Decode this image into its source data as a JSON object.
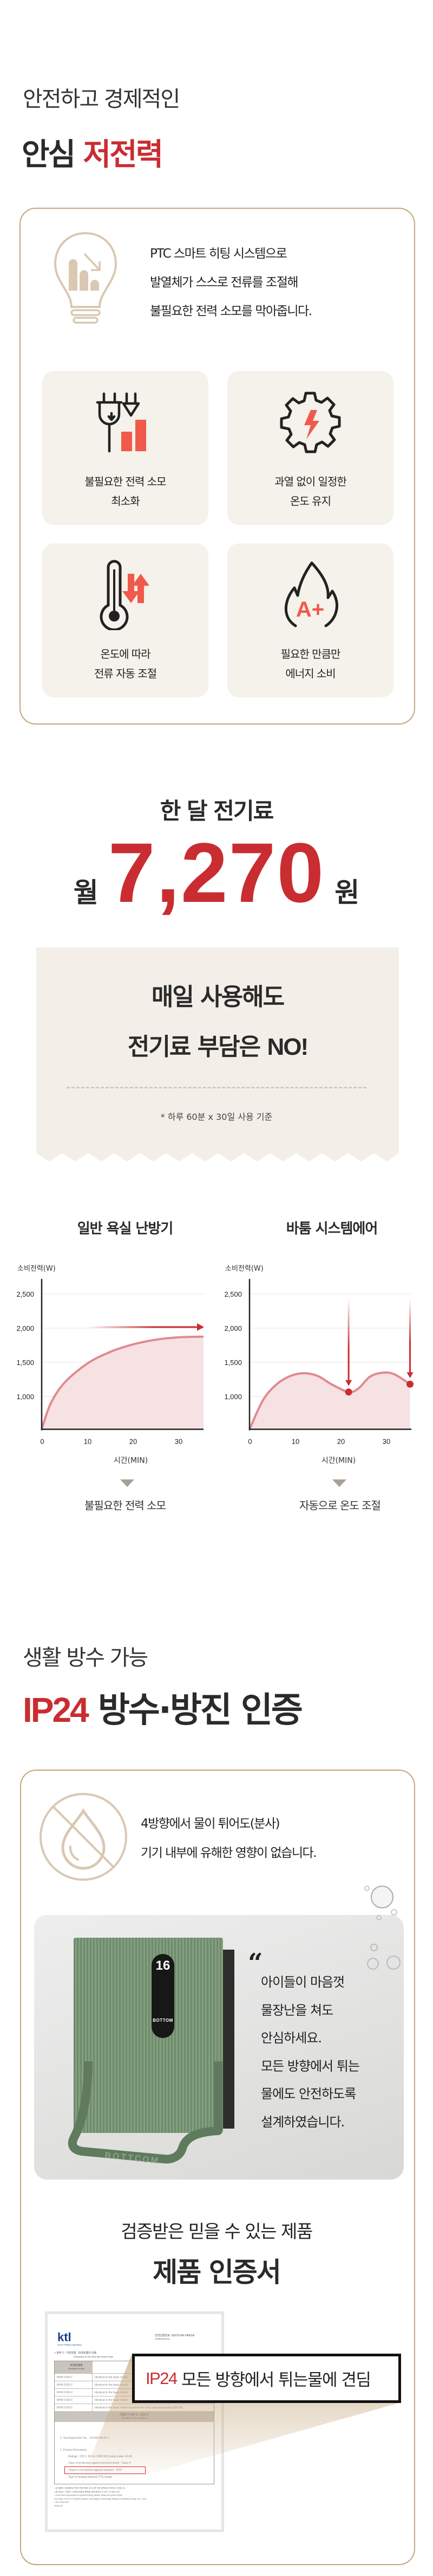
{
  "section_saving": {
    "title_line1": "안전하고 경제적인",
    "title_line2_plain": "안심",
    "title_line2_accent": "저전력",
    "intro_lines": [
      "PTC 스마트 히팅 시스템으로",
      "발열체가 스스로 전류를 조절해",
      "불필요한 전력 소모를 막아줍니다."
    ],
    "intro_icon": "lightbulb-chart-down-icon",
    "cards": [
      {
        "icon": "plug-bars-icon",
        "lines": [
          "불필요한 전력 소모",
          "최소화"
        ]
      },
      {
        "icon": "gear-lightning-icon",
        "lines": [
          "과열 없이 일정한",
          "온도 유지"
        ]
      },
      {
        "icon": "thermometer-arrows-icon",
        "lines": [
          "온도에 따라",
          "전류 자동 조절"
        ]
      },
      {
        "icon": "flame-a-plus-icon",
        "lines": [
          "필요한 만큼만",
          "에너지 소비"
        ]
      }
    ]
  },
  "section_cost": {
    "heading": "한 달 전기료",
    "prefix": "월",
    "amount": "7,270",
    "suffix": "원",
    "headline_line1": "매일 사용해도",
    "headline_line2": "전기료 부담은",
    "headline_no": "NO!",
    "footnote": "* 하루 60분 x 30일 사용 기준"
  },
  "chart_data": [
    {
      "type": "area",
      "title": "일반 욕실 난방기",
      "ylabel": "소비전력(W)",
      "xlabel": "시간(MIN)",
      "x_ticks": [
        "0",
        "10",
        "20",
        "30"
      ],
      "y_ticks": [
        "1,000",
        "1,500",
        "2,000",
        "2,500"
      ],
      "y_tick_values": [
        1000,
        1500,
        2000,
        2500
      ],
      "xlim": [
        0,
        35.6
      ],
      "ylim": [
        520,
        2720
      ],
      "grid": true,
      "x": [
        0,
        2,
        5,
        10,
        15,
        20,
        25,
        30,
        35.6
      ],
      "y": [
        520,
        900,
        1200,
        1480,
        1650,
        1760,
        1830,
        1865,
        1875
      ],
      "annotation_arrow_level": 2000,
      "caption": "불필요한 전력 소모"
    },
    {
      "type": "area",
      "title": "바툼 시스템에어",
      "ylabel": "소비전력(W)",
      "xlabel": "시간(MIN)",
      "x_ticks": [
        "0",
        "10",
        "20",
        "30"
      ],
      "y_ticks": [
        "1,000",
        "1,500",
        "2,000",
        "2,500"
      ],
      "y_tick_values": [
        1000,
        1500,
        2000,
        2500
      ],
      "xlim": [
        0,
        35.6
      ],
      "ylim": [
        520,
        2720
      ],
      "grid": true,
      "x": [
        0,
        3,
        6,
        9,
        12,
        15,
        18,
        21.8,
        24,
        26.5,
        29.5,
        32,
        35.3
      ],
      "y": [
        520,
        950,
        1180,
        1300,
        1340,
        1300,
        1180,
        1065,
        1120,
        1290,
        1350,
        1320,
        1180
      ],
      "highlight_points": [
        {
          "x": 21.8,
          "y": 1065
        },
        {
          "x": 35.3,
          "y": 1180
        }
      ],
      "caption": "자동으로 온도 조절"
    }
  ],
  "colors": {
    "accent_red": "#c92d31",
    "icon_coral": "#f05a4a",
    "border_gold": "#c4a57e",
    "beige": "#f5f1eb",
    "area_fill": "#f6e1e3",
    "area_line": "#e08a8e"
  },
  "section_waterproof": {
    "title_line1": "생활 방수 가능",
    "title_accent": "IP24",
    "title_rest": "방수·방진 인증",
    "no-water-icon": "no-water-drop-icon",
    "desc_lines": [
      "4방향에서 물이 튀어도(분사)",
      "기기 내부에 유해한 영향이 없습니다."
    ],
    "product": {
      "display_temp": "16",
      "brand": "BOTTOM",
      "brand_handle": "BOTTCOM"
    },
    "quote_lines": [
      "아이들이 마음껏",
      "물장난을 쳐도",
      "안심하세요.",
      "모든 방향에서 튀는",
      "물에도 안전하도록",
      "설계하였습니다."
    ],
    "cert_subtitle": "검증받은 믿을 수 있는 제품",
    "cert_title": "제품 인증서",
    "callout_accent": "IP24",
    "callout_text": "모든 방향에서 튀는물에 견딤"
  },
  "certificate": {
    "logo": "ktl",
    "logo_sub": "Korea Testing Laboratory",
    "cert_no_label": "안전인증번호:",
    "cert_no_label_en": "Certification No.",
    "cert_no": "SU072146-24001A",
    "section_title": "□ 첨부 2 : 기본모델 · 파생모델의 내용",
    "section_title_en": "Description of the basic and series model",
    "col_header": "파생모델명",
    "col_header_en": "Derivative model",
    "rows": [
      {
        "model": "BHW-1500-1",
        "desc": "Identical to the basic model"
      },
      {
        "model": "BHW-1500-2",
        "desc": "Identical to the basic model"
      },
      {
        "model": "BHW-1500-3",
        "desc": "Identical to the basic model"
      },
      {
        "model": "BHW-1500-4",
        "desc": "Identical to the basic model"
      },
      {
        "model": "BHW-1500-5",
        "desc": "Identical to the basic model except for the color and rated power(1500 W)"
      }
    ],
    "remarks_header": "제품특기사항 및 시험조건",
    "remarks_header_en": "Remarks & Test conditions",
    "item1": "1.  Test Report Ref. No. : 24-049744-01-2",
    "item2": "2.  Product Description",
    "bullets": [
      "Ratings : 220 V, 60 Hz, 2000 W(Cooling mode: 40 W)",
      "Class of protection against electrical shock : Class II",
      "Degree of protection against moisture : IP24",
      "Type of heating element: PTC heater"
    ],
    "footer_lines": [
      "□ 본 제품의 시험내용에 관하여 의문사항이 있으시면 아래 연락처로 문의하시기 바랍니다.",
      "시험 담당자 / 연락처: 디지털산업본부 융복합시험인증센터 전 우익 / 02-860-1487",
      "□ If you have any question on product testing, please contact the person below:",
      "Job holder: S.M.A.R.T Industry Division, Convergence Technology Testing & Certification Center ,W. I. Jeon",
      "/ +82 2 860-1487"
    ],
    "form_no": "FP511-05"
  }
}
